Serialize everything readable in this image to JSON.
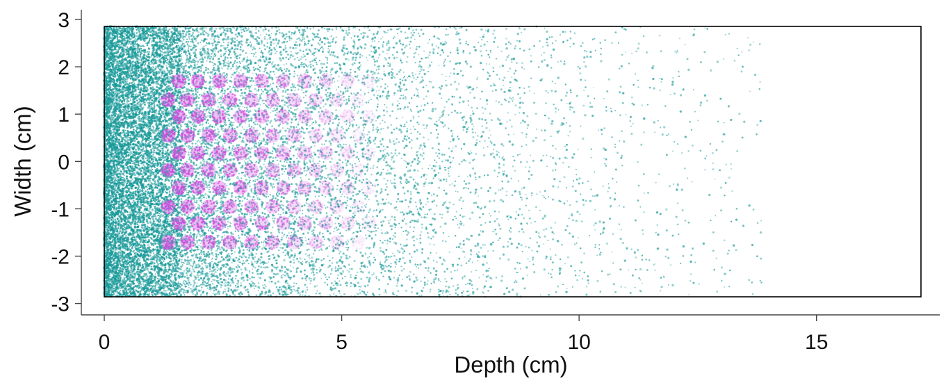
{
  "chart_data": {
    "type": "scatter",
    "title": "",
    "xlabel": "Depth (cm)",
    "ylabel": "Width (cm)",
    "xlim": [
      -0.5,
      17.7
    ],
    "ylim": [
      -3.3,
      3.3
    ],
    "xticks": [
      0,
      5,
      10,
      15
    ],
    "xtick_labels": [
      "0",
      "5",
      "10",
      "15"
    ],
    "yticks": [
      3,
      2,
      1,
      0,
      -1,
      -2,
      -3
    ],
    "ytick_labels": [
      "3",
      "2",
      "1",
      "0",
      "-1",
      "-2",
      "-3"
    ],
    "grid": false,
    "legend": "none",
    "region": {
      "x": [
        0,
        17.2
      ],
      "y": [
        -2.85,
        2.85
      ]
    },
    "colors": {
      "background_points": "#1a9a9a",
      "cluster_points": "#d24ee0",
      "frame": "#000000"
    },
    "series": [
      {
        "kind": "diffuse-background",
        "density": "highest near depth 0, decaying with depth out to about 17 cm",
        "y_range": [
          -2.85,
          2.85
        ]
      },
      {
        "kind": "clusters",
        "depth_columns": [
          1.35,
          1.75,
          2.2,
          2.65,
          3.1,
          3.55,
          4.0,
          4.45,
          4.9,
          5.35
        ],
        "width_rows": [
          1.7,
          1.3,
          0.95,
          0.55,
          0.18,
          -0.18,
          -0.55,
          -0.95,
          -1.3,
          -1.7
        ],
        "stagger": 0.22,
        "radius_cm": 0.15,
        "intensity": "strongest at shallow depth, fading with depth"
      }
    ]
  }
}
